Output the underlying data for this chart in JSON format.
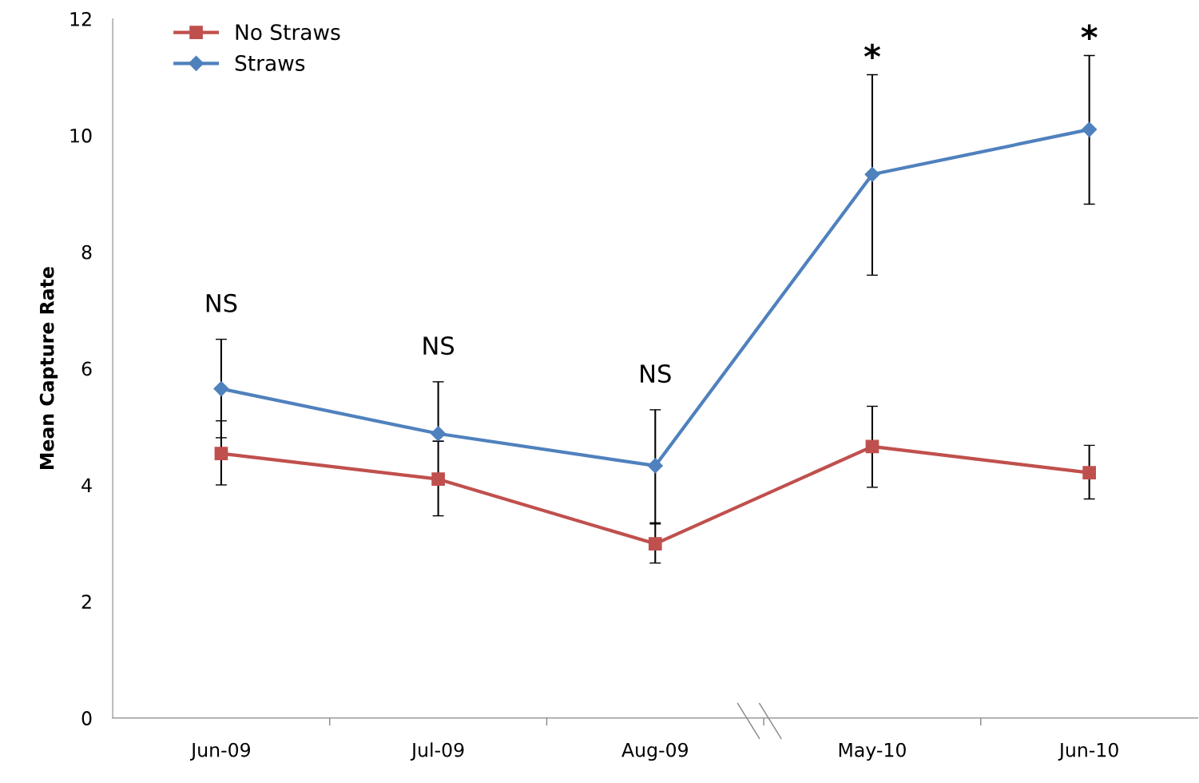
{
  "chart_data": {
    "type": "line",
    "ylabel": "Mean Capture Rate",
    "categories": [
      "Jun-09",
      "Jul-09",
      "Aug-09",
      "May-10",
      "Jun-10"
    ],
    "ylim": [
      0,
      12
    ],
    "yticks": [
      0,
      2,
      4,
      6,
      8,
      10,
      12
    ],
    "grid": false,
    "legend": "top left",
    "line_style": "solid",
    "series": [
      {
        "name": "No Straws",
        "color": "#c0504d",
        "marker": "square",
        "values": [
          4.54,
          4.1,
          2.99,
          4.66,
          4.21
        ],
        "errors": [
          [
            4.0,
            5.1
          ],
          [
            3.47,
            4.75
          ],
          [
            2.66,
            3.35
          ],
          [
            3.96,
            5.35
          ],
          [
            3.76,
            4.68
          ]
        ]
      },
      {
        "name": "Straws",
        "color": "#4f81bd",
        "marker": "diamond",
        "values": [
          5.65,
          4.88,
          4.33,
          9.33,
          10.1
        ],
        "errors": [
          [
            4.81,
            6.5
          ],
          [
            4.75,
            5.77
          ],
          [
            3.33,
            5.29
          ],
          [
            7.6,
            11.04
          ],
          [
            8.82,
            11.37
          ]
        ]
      }
    ],
    "annotations": [
      "NS",
      "NS",
      "NS",
      "*",
      "*"
    ]
  }
}
